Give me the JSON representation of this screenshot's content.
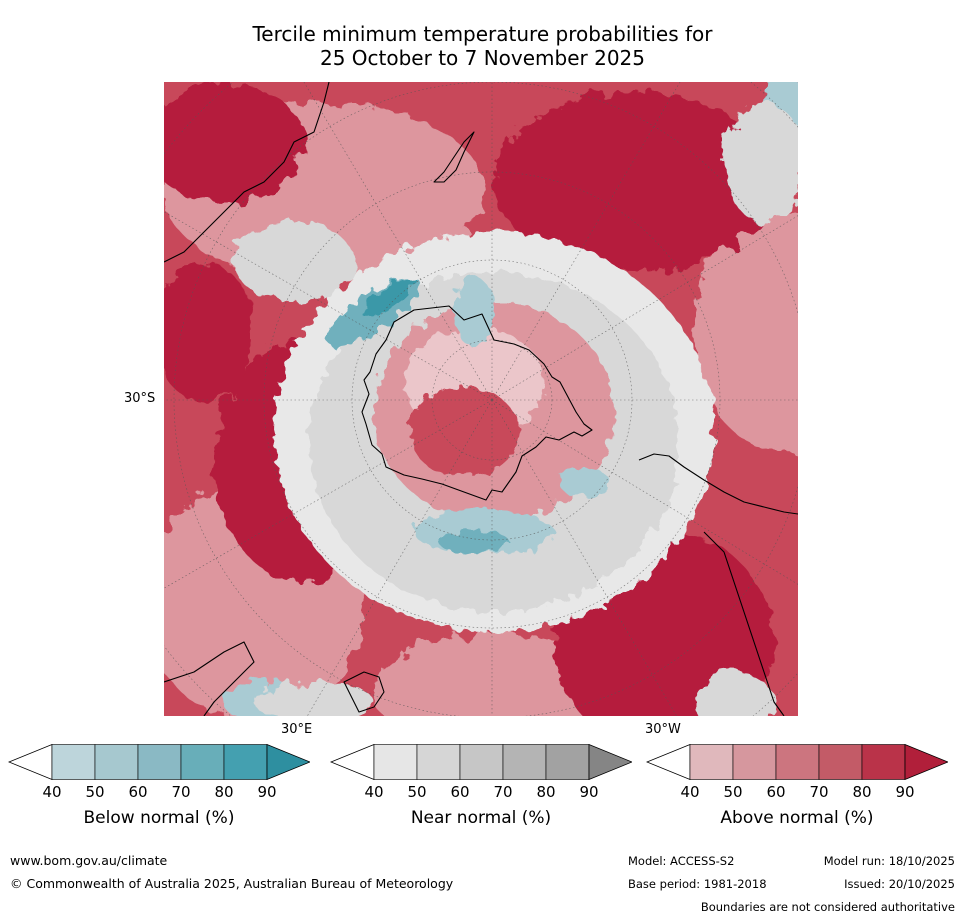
{
  "title": {
    "line1": "Tercile minimum temperature probabilities for",
    "line2": "25 October to 7 November 2025"
  },
  "map": {
    "lat_label": "30°S",
    "lon_label_left": "30°E",
    "lon_label_right": "30°W"
  },
  "colorbars": [
    {
      "label": "Below normal (%)",
      "ticks": [
        "40",
        "50",
        "60",
        "70",
        "80",
        "90"
      ],
      "colors": [
        "#ffffff",
        "#bdd5db",
        "#a6c8cf",
        "#8ab9c4",
        "#68aeb9",
        "#44a0b0",
        "#2e8fa0"
      ]
    },
    {
      "label": "Near normal (%)",
      "ticks": [
        "40",
        "50",
        "60",
        "70",
        "80",
        "90"
      ],
      "colors": [
        "#ffffff",
        "#e6e6e6",
        "#d6d6d6",
        "#c6c6c6",
        "#b4b4b4",
        "#a2a2a2",
        "#858585"
      ]
    },
    {
      "label": "Above normal (%)",
      "ticks": [
        "40",
        "50",
        "60",
        "70",
        "80",
        "90"
      ],
      "colors": [
        "#ffffff",
        "#e0b8bc",
        "#d6979e",
        "#cc757f",
        "#c35b67",
        "#ba3349",
        "#b11f3a"
      ]
    }
  ],
  "map_colors": {
    "above_strong": "#b51f3c",
    "above_mid": "#c8485a",
    "above_light": "#dd969e",
    "above_pale": "#ebc6ca",
    "near": "#d8d8d8",
    "near_light": "#e8e8e8",
    "below_light": "#a9cbd3",
    "below_mid": "#6fb0bd",
    "below_strong": "#3a98a8"
  },
  "footer": {
    "website": "www.bom.gov.au/climate",
    "copyright": "© Commonwealth of Australia 2025, Australian Bureau of Meteorology",
    "model": "Model: ACCESS-S2",
    "model_run": "Model run: 18/10/2025",
    "base_period": "Base period: 1981-2018",
    "issued": "Issued: 20/10/2025",
    "disclaimer": "Boundaries are not considered authoritative"
  }
}
